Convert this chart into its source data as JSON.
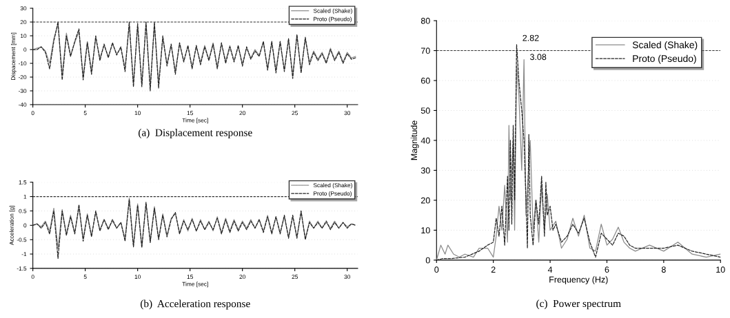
{
  "chart_data": [
    {
      "type": "line",
      "title": "(a)  Displacement response",
      "xlabel": "Time [sec]",
      "ylabel": "Dispacement [mm]",
      "xlim": [
        0,
        31
      ],
      "xticks": [
        0,
        5,
        10,
        15,
        20,
        25,
        30
      ],
      "ylim": [
        -40,
        30
      ],
      "yticks": [
        -40,
        -30,
        -20,
        -10,
        0,
        10,
        20,
        30
      ],
      "grid": "y",
      "legend": "top right",
      "ref_lines": [
        {
          "axis": "y",
          "value": 20,
          "line_style": "dashed",
          "color": "#333333"
        }
      ],
      "x": [
        0,
        0.4,
        0.8,
        1.2,
        1.6,
        2.0,
        2.4,
        2.8,
        3.2,
        3.6,
        4.0,
        4.4,
        4.8,
        5.2,
        5.6,
        6.0,
        6.4,
        6.8,
        7.2,
        7.6,
        8.0,
        8.4,
        8.8,
        9.2,
        9.6,
        10.0,
        10.4,
        10.8,
        11.2,
        11.6,
        12.0,
        12.4,
        12.8,
        13.2,
        13.6,
        14.0,
        14.4,
        14.8,
        15.2,
        15.6,
        16.0,
        16.4,
        16.8,
        17.2,
        17.6,
        18.0,
        18.4,
        18.8,
        19.2,
        19.6,
        20.0,
        20.4,
        20.8,
        21.2,
        21.6,
        22.0,
        22.4,
        22.8,
        23.2,
        23.6,
        24.0,
        24.4,
        24.8,
        25.2,
        25.6,
        26.0,
        26.4,
        26.8,
        27.2,
        27.6,
        28.0,
        28.4,
        28.8,
        29.2,
        29.6,
        30.0,
        30.4,
        30.8
      ],
      "series": [
        {
          "name": "Scaled (Shake)",
          "color": "#8a8a8a",
          "line_style": "dotted",
          "values": [
            0,
            1,
            2,
            -1,
            -10,
            8,
            18,
            -18,
            12,
            -4,
            5,
            13,
            -19,
            6,
            -15,
            8,
            -6,
            3,
            -5,
            4,
            -3,
            1,
            -13,
            18,
            -24,
            17,
            -25,
            19,
            -26,
            18,
            -24,
            8,
            -10,
            3,
            -15,
            4,
            -8,
            2,
            -12,
            2,
            -9,
            3,
            -7,
            5,
            -12,
            4,
            -8,
            3,
            -8,
            2,
            -10,
            1,
            -6,
            0,
            -4,
            5,
            -13,
            5,
            -14,
            5,
            -14,
            7,
            -18,
            10,
            -15,
            8,
            -9,
            -1,
            -7,
            -2,
            -9,
            1,
            -7,
            -1,
            -9,
            -2,
            -6,
            -5
          ]
        },
        {
          "name": "Proto (Pseudo)",
          "color": "#222222",
          "line_style": "dashed",
          "values": [
            0,
            0,
            2,
            -2,
            -14,
            6,
            20,
            -22,
            10,
            -5,
            6,
            15,
            -22,
            5,
            -18,
            10,
            -8,
            4,
            -6,
            5,
            -4,
            2,
            -16,
            20,
            -27,
            19,
            -27,
            20,
            -30,
            20,
            -28,
            10,
            -12,
            4,
            -18,
            5,
            -9,
            3,
            -14,
            3,
            -11,
            2,
            -8,
            4,
            -14,
            5,
            -10,
            2,
            -9,
            3,
            -12,
            2,
            -7,
            -1,
            -5,
            6,
            -15,
            6,
            -17,
            6,
            -16,
            8,
            -21,
            11,
            -17,
            9,
            -11,
            -2,
            -8,
            -3,
            -10,
            0,
            -8,
            -2,
            -10,
            -3,
            -7,
            -6
          ]
        }
      ]
    },
    {
      "type": "line",
      "title": "(b)  Acceleration response",
      "xlabel": "Time [sec]",
      "ylabel": "Acceleration [g]",
      "xlim": [
        0,
        31
      ],
      "xticks": [
        0,
        5,
        10,
        15,
        20,
        25,
        30
      ],
      "ylim": [
        -1.5,
        1.5
      ],
      "yticks": [
        -1.5,
        -1,
        -0.5,
        0,
        0.5,
        1,
        1.5
      ],
      "grid": "y",
      "legend": "top right",
      "ref_lines": [
        {
          "axis": "y",
          "value": 1,
          "line_style": "dashed",
          "color": "#333333"
        }
      ],
      "x": [
        0,
        0.4,
        0.8,
        1.2,
        1.6,
        2.0,
        2.4,
        2.8,
        3.2,
        3.6,
        4.0,
        4.4,
        4.8,
        5.2,
        5.6,
        6.0,
        6.4,
        6.8,
        7.2,
        7.6,
        8.0,
        8.4,
        8.8,
        9.2,
        9.6,
        10.0,
        10.4,
        10.8,
        11.2,
        11.6,
        12.0,
        12.4,
        12.8,
        13.2,
        13.6,
        14.0,
        14.4,
        14.8,
        15.2,
        15.6,
        16.0,
        16.4,
        16.8,
        17.2,
        17.6,
        18.0,
        18.4,
        18.8,
        19.2,
        19.6,
        20.0,
        20.4,
        20.8,
        21.2,
        21.6,
        22.0,
        22.4,
        22.8,
        23.2,
        23.6,
        24.0,
        24.4,
        24.8,
        25.2,
        25.6,
        26.0,
        26.4,
        26.8,
        27.2,
        27.6,
        28.0,
        28.4,
        28.8,
        29.2,
        29.6,
        30.0,
        30.4,
        30.8
      ],
      "series": [
        {
          "name": "Scaled (Shake)",
          "color": "#8a8a8a",
          "line_style": "dotted",
          "values": [
            0,
            0.05,
            -0.05,
            0.15,
            -0.2,
            0.6,
            -0.8,
            0.55,
            -0.3,
            0.35,
            -0.25,
            0.6,
            -0.45,
            0.4,
            -0.35,
            0.45,
            -0.15,
            0.2,
            -0.1,
            0.15,
            -0.1,
            0.1,
            -0.45,
            0.95,
            -0.7,
            0.75,
            -0.7,
            0.75,
            -0.55,
            0.65,
            -0.45,
            0.4,
            -0.35,
            0.25,
            0.4,
            -0.25,
            0.2,
            -0.2,
            0.25,
            -0.2,
            0.2,
            -0.15,
            0.15,
            -0.2,
            0.3,
            -0.25,
            0.25,
            -0.2,
            0.2,
            -0.15,
            0.15,
            -0.1,
            0.2,
            -0.1,
            0.2,
            -0.2,
            0.35,
            -0.25,
            0.3,
            -0.25,
            0.3,
            -0.4,
            0.3,
            -0.4,
            0.45,
            -0.45,
            0.15,
            -0.1,
            0.15,
            -0.1,
            0.1,
            -0.1,
            0.15,
            -0.1,
            0.1,
            -0.05,
            0.05,
            0
          ]
        },
        {
          "name": "Proto (Pseudo)",
          "color": "#222222",
          "line_style": "dashed",
          "values": [
            0,
            0.05,
            -0.1,
            0.1,
            -0.3,
            0.5,
            -1.15,
            0.5,
            -0.35,
            0.3,
            -0.3,
            0.72,
            -0.55,
            0.35,
            -0.4,
            0.5,
            -0.2,
            0.2,
            -0.15,
            0.2,
            -0.1,
            0.1,
            -0.55,
            0.9,
            -0.75,
            0.7,
            -0.78,
            0.8,
            -0.6,
            0.6,
            -0.5,
            0.35,
            -0.4,
            0.2,
            0.45,
            -0.3,
            0.15,
            -0.15,
            0.2,
            -0.2,
            0.15,
            -0.15,
            0.1,
            -0.15,
            0.25,
            -0.3,
            0.2,
            -0.25,
            0.15,
            -0.2,
            0.1,
            -0.15,
            0.15,
            -0.1,
            0.2,
            -0.25,
            0.3,
            -0.3,
            0.3,
            -0.3,
            0.35,
            -0.45,
            0.35,
            -0.45,
            0.5,
            -0.5,
            0.1,
            -0.1,
            0.1,
            -0.1,
            0.15,
            -0.15,
            0.1,
            -0.1,
            0.1,
            -0.1,
            0.05,
            0
          ]
        }
      ]
    },
    {
      "type": "line",
      "title": "(c)  Power spectrum",
      "xlabel": "Frequency (Hz)",
      "ylabel": "Magnitude",
      "xlim": [
        0,
        10
      ],
      "xticks": [
        0,
        2,
        4,
        6,
        8,
        10
      ],
      "ylim": [
        0,
        80
      ],
      "yticks": [
        0,
        10,
        20,
        30,
        40,
        50,
        60,
        70,
        80
      ],
      "grid": "y",
      "legend": "top right",
      "ref_lines": [
        {
          "axis": "y",
          "value": 70,
          "line_style": "dashed",
          "color": "#333333"
        }
      ],
      "annotations": [
        {
          "text": "2.82",
          "x": 2.82,
          "y": 72
        },
        {
          "text": "3.08",
          "x": 3.08,
          "y": 67
        }
      ],
      "series": [
        {
          "name": "Scaled (Shake)",
          "color": "#8a8a8a",
          "line_style": "solid",
          "x": [
            0,
            0.15,
            0.3,
            0.4,
            0.6,
            0.8,
            1.0,
            1.3,
            1.5,
            1.8,
            2.0,
            2.1,
            2.2,
            2.3,
            2.4,
            2.5,
            2.55,
            2.6,
            2.7,
            2.75,
            2.82,
            2.9,
            3.0,
            3.08,
            3.15,
            3.3,
            3.4,
            3.5,
            3.6,
            3.7,
            3.8,
            3.9,
            4.0,
            4.2,
            4.4,
            4.6,
            4.8,
            5.0,
            5.2,
            5.4,
            5.6,
            5.8,
            6.0,
            6.2,
            6.4,
            6.6,
            6.8,
            7.0,
            7.5,
            8.0,
            8.5,
            9.0,
            9.5,
            10.0
          ],
          "values": [
            0,
            5,
            2,
            5,
            2,
            1,
            2,
            1,
            4,
            4,
            1,
            8,
            18,
            10,
            25,
            6,
            45,
            20,
            40,
            10,
            65,
            55,
            30,
            67,
            15,
            40,
            10,
            20,
            6,
            25,
            10,
            22,
            10,
            13,
            4,
            7,
            14,
            8,
            15,
            4,
            3,
            12,
            5,
            7,
            11,
            6,
            4,
            3,
            5,
            3,
            6,
            2,
            1,
            2
          ]
        },
        {
          "name": "Proto (Pseudo)",
          "color": "#222222",
          "line_style": "dashed",
          "x": [
            0,
            0.2,
            0.5,
            1.0,
            1.5,
            1.8,
            2.0,
            2.1,
            2.2,
            2.3,
            2.4,
            2.5,
            2.55,
            2.6,
            2.65,
            2.7,
            2.75,
            2.82,
            2.9,
            3.0,
            3.08,
            3.15,
            3.2,
            3.25,
            3.3,
            3.4,
            3.5,
            3.6,
            3.7,
            3.8,
            3.85,
            3.9,
            4.0,
            4.1,
            4.2,
            4.4,
            4.6,
            4.8,
            5.0,
            5.2,
            5.4,
            5.6,
            5.8,
            6.0,
            6.2,
            6.4,
            6.6,
            6.8,
            7.0,
            7.5,
            8.0,
            8.5,
            9.0,
            9.5,
            10.0
          ],
          "values": [
            0,
            0.5,
            0.5,
            1,
            3,
            5,
            6,
            14,
            8,
            18,
            5,
            28,
            10,
            40,
            12,
            45,
            20,
            72,
            60,
            50,
            40,
            20,
            4,
            42,
            15,
            5,
            20,
            12,
            28,
            8,
            26,
            15,
            18,
            10,
            12,
            6,
            8,
            12,
            9,
            14,
            6,
            1,
            9,
            7,
            5,
            9,
            8,
            5,
            4,
            4,
            4,
            5,
            3,
            2,
            1
          ]
        }
      ]
    }
  ]
}
